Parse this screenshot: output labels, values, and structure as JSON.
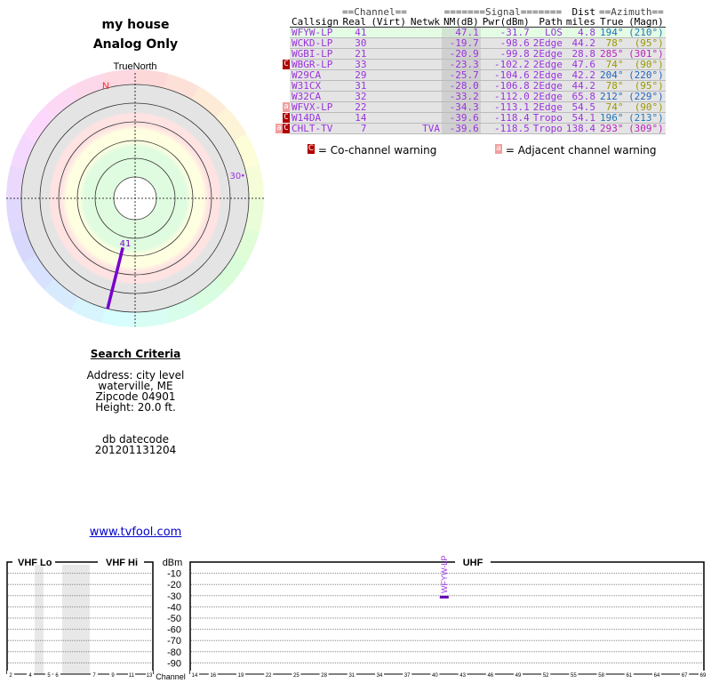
{
  "header": {
    "title": "my house",
    "subtitle": "Analog Only"
  },
  "radar": {
    "north_label": "TrueNorth",
    "n_marker": "N",
    "stations": [
      {
        "label": "41",
        "azimuth_true": 194,
        "color": "#7700cc"
      },
      {
        "label": "30",
        "azimuth_true": 78,
        "color": "#9933dd"
      }
    ]
  },
  "criteria": {
    "title": "Search Criteria",
    "address": "Address: city level",
    "city": "waterville, ME",
    "zip": "Zipcode 04901",
    "height": "Height: 20.0 ft.",
    "db_label": "db datecode",
    "db_value": "201201131204"
  },
  "link": "www.tvfool.com",
  "table": {
    "group_headers": {
      "channel": "==Channel==",
      "signal": "=======Signal=======",
      "dist": "Dist",
      "azimuth": "==Azimuth=="
    },
    "columns": [
      "Callsign",
      "Real",
      "(Virt)",
      "Netwk",
      "NM(dB)",
      "Pwr(dBm)",
      "Path",
      "miles",
      "True",
      "(Magn)"
    ],
    "rows": [
      {
        "warn": "",
        "callsign": "WFYW-LP",
        "real": "41",
        "virt": "",
        "netwk": "",
        "nm": "47.1",
        "pwr": "-31.7",
        "path": "LOS",
        "dist": "4.8",
        "true": "194°",
        "magn": "(210°)",
        "azcolor": "#2277bb"
      },
      {
        "warn": "",
        "callsign": "WCKD-LP",
        "real": "30",
        "virt": "",
        "netwk": "",
        "nm": "-19.7",
        "pwr": "-98.6",
        "path": "2Edge",
        "dist": "44.2",
        "true": "78°",
        "magn": "(95°)",
        "azcolor": "#999900"
      },
      {
        "warn": "",
        "callsign": "WGBI-LP",
        "real": "21",
        "virt": "",
        "netwk": "",
        "nm": "-20.9",
        "pwr": "-99.8",
        "path": "2Edge",
        "dist": "28.8",
        "true": "285°",
        "magn": "(301°)",
        "azcolor": "#bb22bb"
      },
      {
        "warn": "C",
        "callsign": "WBGR-LP",
        "real": "33",
        "virt": "",
        "netwk": "",
        "nm": "-23.3",
        "pwr": "-102.2",
        "path": "2Edge",
        "dist": "47.6",
        "true": "74°",
        "magn": "(90°)",
        "azcolor": "#999900"
      },
      {
        "warn": "",
        "callsign": "W29CA",
        "real": "29",
        "virt": "",
        "netwk": "",
        "nm": "-25.7",
        "pwr": "-104.6",
        "path": "2Edge",
        "dist": "42.2",
        "true": "204°",
        "magn": "(220°)",
        "azcolor": "#2266bb"
      },
      {
        "warn": "",
        "callsign": "W31CX",
        "real": "31",
        "virt": "",
        "netwk": "",
        "nm": "-28.0",
        "pwr": "-106.8",
        "path": "2Edge",
        "dist": "44.2",
        "true": "78°",
        "magn": "(95°)",
        "azcolor": "#999900"
      },
      {
        "warn": "",
        "callsign": "W32CA",
        "real": "32",
        "virt": "",
        "netwk": "",
        "nm": "-33.2",
        "pwr": "-112.0",
        "path": "2Edge",
        "dist": "65.8",
        "true": "212°",
        "magn": "(229°)",
        "azcolor": "#2266bb"
      },
      {
        "warn": "a",
        "callsign": "WFVX-LP",
        "real": "22",
        "virt": "",
        "netwk": "",
        "nm": "-34.3",
        "pwr": "-113.1",
        "path": "2Edge",
        "dist": "54.5",
        "true": "74°",
        "magn": "(90°)",
        "azcolor": "#999900"
      },
      {
        "warn": "C",
        "callsign": "W14DA",
        "real": "14",
        "virt": "",
        "netwk": "",
        "nm": "-39.6",
        "pwr": "-118.4",
        "path": "Tropo",
        "dist": "54.1",
        "true": "196°",
        "magn": "(213°)",
        "azcolor": "#2277bb"
      },
      {
        "warn": "aC",
        "callsign": "CHLT-TV",
        "real": "7",
        "virt": "",
        "netwk": "TVA",
        "nm": "-39.6",
        "pwr": "-118.5",
        "path": "Tropo",
        "dist": "138.4",
        "true": "293°",
        "magn": "(309°)",
        "azcolor": "#bb22bb"
      }
    ]
  },
  "legend": {
    "c_icon": "C",
    "c_text": "= Co-channel warning",
    "a_icon": "a",
    "a_text": "= Adjacent channel warning"
  },
  "spectrum": {
    "vhf_lo": "VHF Lo",
    "vhf_hi": "VHF Hi",
    "uhf": "UHF",
    "unit": "dBm",
    "yticks": [
      "-10",
      "-20",
      "-30",
      "-40",
      "-50",
      "-60",
      "-70",
      "-80",
      "-90"
    ],
    "channel_label": "Channel",
    "vhf_ticks": [
      "2",
      "4",
      "5",
      "6",
      "7",
      "9",
      "11",
      "13"
    ],
    "uhf_ticks": [
      "14",
      "16",
      "19",
      "22",
      "25",
      "28",
      "31",
      "34",
      "37",
      "40",
      "43",
      "46",
      "49",
      "52",
      "55",
      "58",
      "61",
      "64",
      "67",
      "69"
    ],
    "signals": [
      {
        "callsign": "WFYW-LP",
        "channel": 41,
        "dbm": -31.7
      }
    ]
  }
}
